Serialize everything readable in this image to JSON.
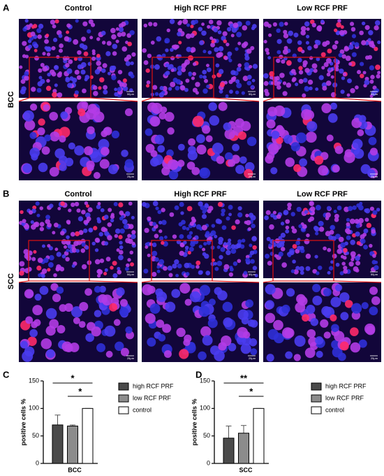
{
  "figure": {
    "panels": [
      {
        "label": "A",
        "row_label": "BCC",
        "columns": [
          "Control",
          "High RCF PRF",
          "Low RCF PRF"
        ]
      },
      {
        "label": "B",
        "row_label": "SCC",
        "columns": [
          "Control",
          "High RCF PRF",
          "Low RCF PRF"
        ]
      }
    ],
    "scale_bars": [
      "50μm",
      "25μm"
    ],
    "chart_labels": [
      "C",
      "D"
    ]
  },
  "chart_data": [
    {
      "type": "bar",
      "y_label": "positive cells %",
      "categories": [
        "BCC"
      ],
      "ylim": [
        0,
        150
      ],
      "yticks": [
        0,
        50,
        100,
        150
      ],
      "series": [
        {
          "name": "high RCF PRF",
          "color": "#4a4a4a",
          "values": [
            70
          ],
          "errors": [
            18
          ]
        },
        {
          "name": "low RCF PRF",
          "color": "#8c8c8c",
          "values": [
            68
          ],
          "errors": [
            2
          ]
        },
        {
          "name": "control",
          "color": "#ffffff",
          "values": [
            100
          ],
          "errors": [
            0
          ]
        }
      ],
      "annotations": [
        "*",
        "*"
      ]
    },
    {
      "type": "bar",
      "y_label": "positive cells %",
      "categories": [
        "SCC"
      ],
      "ylim": [
        0,
        150
      ],
      "yticks": [
        0,
        50,
        100,
        150
      ],
      "series": [
        {
          "name": "high RCF PRF",
          "color": "#4a4a4a",
          "values": [
            46
          ],
          "errors": [
            22
          ]
        },
        {
          "name": "low RCF PRF",
          "color": "#8c8c8c",
          "values": [
            55
          ],
          "errors": [
            14
          ]
        },
        {
          "name": "control",
          "color": "#ffffff",
          "values": [
            100
          ],
          "errors": [
            0
          ]
        }
      ],
      "annotations": [
        "**",
        "*"
      ]
    }
  ]
}
